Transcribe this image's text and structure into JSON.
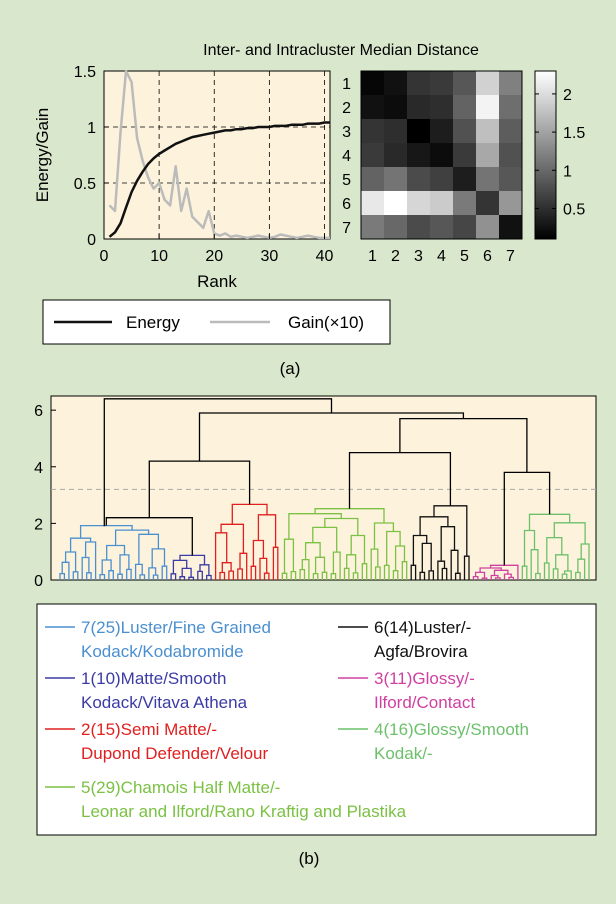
{
  "panel_a": {
    "title": "Inter- and Intracluster Median Distance",
    "caption": "(a)"
  },
  "panel_b": {
    "caption": "(b)"
  },
  "chart_data": [
    {
      "type": "line",
      "xlabel": "Rank",
      "ylabel": "Energy/Gain",
      "xlim": [
        0,
        41
      ],
      "ylim": [
        0,
        1.5
      ],
      "xticks": [
        "0",
        "10",
        "20",
        "30",
        "40"
      ],
      "yticks": [
        "0",
        "0.5",
        "1",
        "1.5"
      ],
      "grid": true,
      "legend_position": "bottom",
      "series": [
        {
          "name": "Energy",
          "color": "#111111",
          "x": [
            1,
            2,
            3,
            4,
            5,
            6,
            7,
            8,
            9,
            10,
            11,
            12,
            13,
            14,
            15,
            16,
            17,
            18,
            19,
            20,
            21,
            22,
            23,
            24,
            25,
            26,
            27,
            28,
            29,
            30,
            31,
            32,
            33,
            34,
            35,
            36,
            37,
            38,
            39,
            40,
            41
          ],
          "values": [
            0.02,
            0.06,
            0.14,
            0.28,
            0.42,
            0.52,
            0.6,
            0.67,
            0.72,
            0.76,
            0.79,
            0.82,
            0.85,
            0.87,
            0.89,
            0.91,
            0.92,
            0.93,
            0.94,
            0.95,
            0.96,
            0.97,
            0.97,
            0.98,
            0.98,
            0.99,
            0.99,
            1.0,
            1.0,
            1.0,
            1.01,
            1.01,
            1.01,
            1.02,
            1.02,
            1.02,
            1.03,
            1.03,
            1.03,
            1.04,
            1.04
          ]
        },
        {
          "name": "Gain(×10)",
          "color": "#bbbbbb",
          "x": [
            1,
            2,
            3,
            4,
            5,
            6,
            7,
            8,
            9,
            10,
            11,
            12,
            13,
            14,
            15,
            16,
            17,
            18,
            19,
            20,
            21,
            22,
            23,
            24,
            25,
            26,
            27,
            28,
            29,
            30,
            31,
            32,
            33,
            34,
            35,
            36,
            37,
            38,
            39,
            40,
            41
          ],
          "values": [
            0.3,
            0.25,
            0.95,
            1.55,
            1.4,
            0.9,
            0.7,
            0.55,
            0.45,
            0.5,
            0.35,
            0.3,
            0.65,
            0.25,
            0.45,
            0.2,
            0.15,
            0.1,
            0.25,
            0.05,
            0.03,
            0.05,
            0.02,
            0.03,
            0.02,
            0.01,
            0.02,
            0.03,
            0.02,
            0.01,
            0.02,
            0.04,
            0.03,
            0.02,
            0.01,
            0.02,
            0.03,
            0.02,
            0.01,
            0.01,
            0.01
          ]
        }
      ]
    },
    {
      "type": "heatmap",
      "title": "Inter- and Intracluster Median Distance",
      "rows": [
        "1",
        "2",
        "3",
        "4",
        "5",
        "6",
        "7"
      ],
      "cols": [
        "1",
        "2",
        "3",
        "4",
        "5",
        "6",
        "7"
      ],
      "values": [
        [
          0.15,
          0.25,
          0.55,
          0.6,
          0.85,
          1.9,
          1.2
        ],
        [
          0.25,
          0.2,
          0.45,
          0.5,
          0.95,
          2.2,
          1.05
        ],
        [
          0.55,
          0.5,
          0.1,
          0.35,
          0.8,
          1.75,
          0.9
        ],
        [
          0.6,
          0.45,
          0.3,
          0.2,
          0.6,
          1.55,
          0.8
        ],
        [
          0.95,
          1.1,
          0.75,
          0.65,
          0.35,
          1.1,
          0.85
        ],
        [
          2.1,
          2.3,
          1.95,
          1.85,
          1.15,
          0.55,
          1.4
        ],
        [
          1.15,
          1.0,
          0.75,
          0.85,
          0.7,
          1.35,
          0.25
        ]
      ],
      "colorbar": {
        "min": 0.1,
        "max": 2.3,
        "ticks": [
          "0.5",
          "1",
          "1.5",
          "2"
        ],
        "tick_values": [
          0.5,
          1.0,
          1.5,
          2.0
        ]
      },
      "colormap": "gray"
    },
    {
      "type": "dendrogram",
      "ylim": [
        0,
        6.5
      ],
      "yticks": [
        "0",
        "2",
        "4",
        "6"
      ],
      "threshold": 3.2,
      "clusters": [
        {
          "label": "7(25)Luster/Fine Grained",
          "label2": "Kodack/Kodabromide",
          "color": "#4a8fd0",
          "leaves": 25,
          "height": 1.9
        },
        {
          "label": "1(10)Matte/Smooth",
          "label2": "Kodack/Vitava Athena",
          "color": "#3b3ba5",
          "leaves": 10,
          "height": 0.85
        },
        {
          "label": "2(15)Semi Matte/-",
          "label2": "Dupond Defender/Velour",
          "color": "#e02020",
          "leaves": 15,
          "height": 2.65
        },
        {
          "label": "5(29)Chamois Half Matte/-",
          "label2": "Leonar and Ilford/Rano Kraftig and Plastika",
          "color": "#7bc144",
          "leaves": 29,
          "height": 2.5
        },
        {
          "label": "6(14)Luster/-",
          "label2": "Agfa/Brovira",
          "color": "#111111",
          "leaves": 14,
          "height": 2.6
        },
        {
          "label": "3(11)Glossy/-",
          "label2": "Ilford/Contact",
          "color": "#d040a0",
          "leaves": 11,
          "height": 0.5
        },
        {
          "label": "4(16)Glossy/Smooth",
          "label2": "Kodak/-",
          "color": "#6cc06a",
          "leaves": 16,
          "height": 2.3
        }
      ]
    }
  ]
}
